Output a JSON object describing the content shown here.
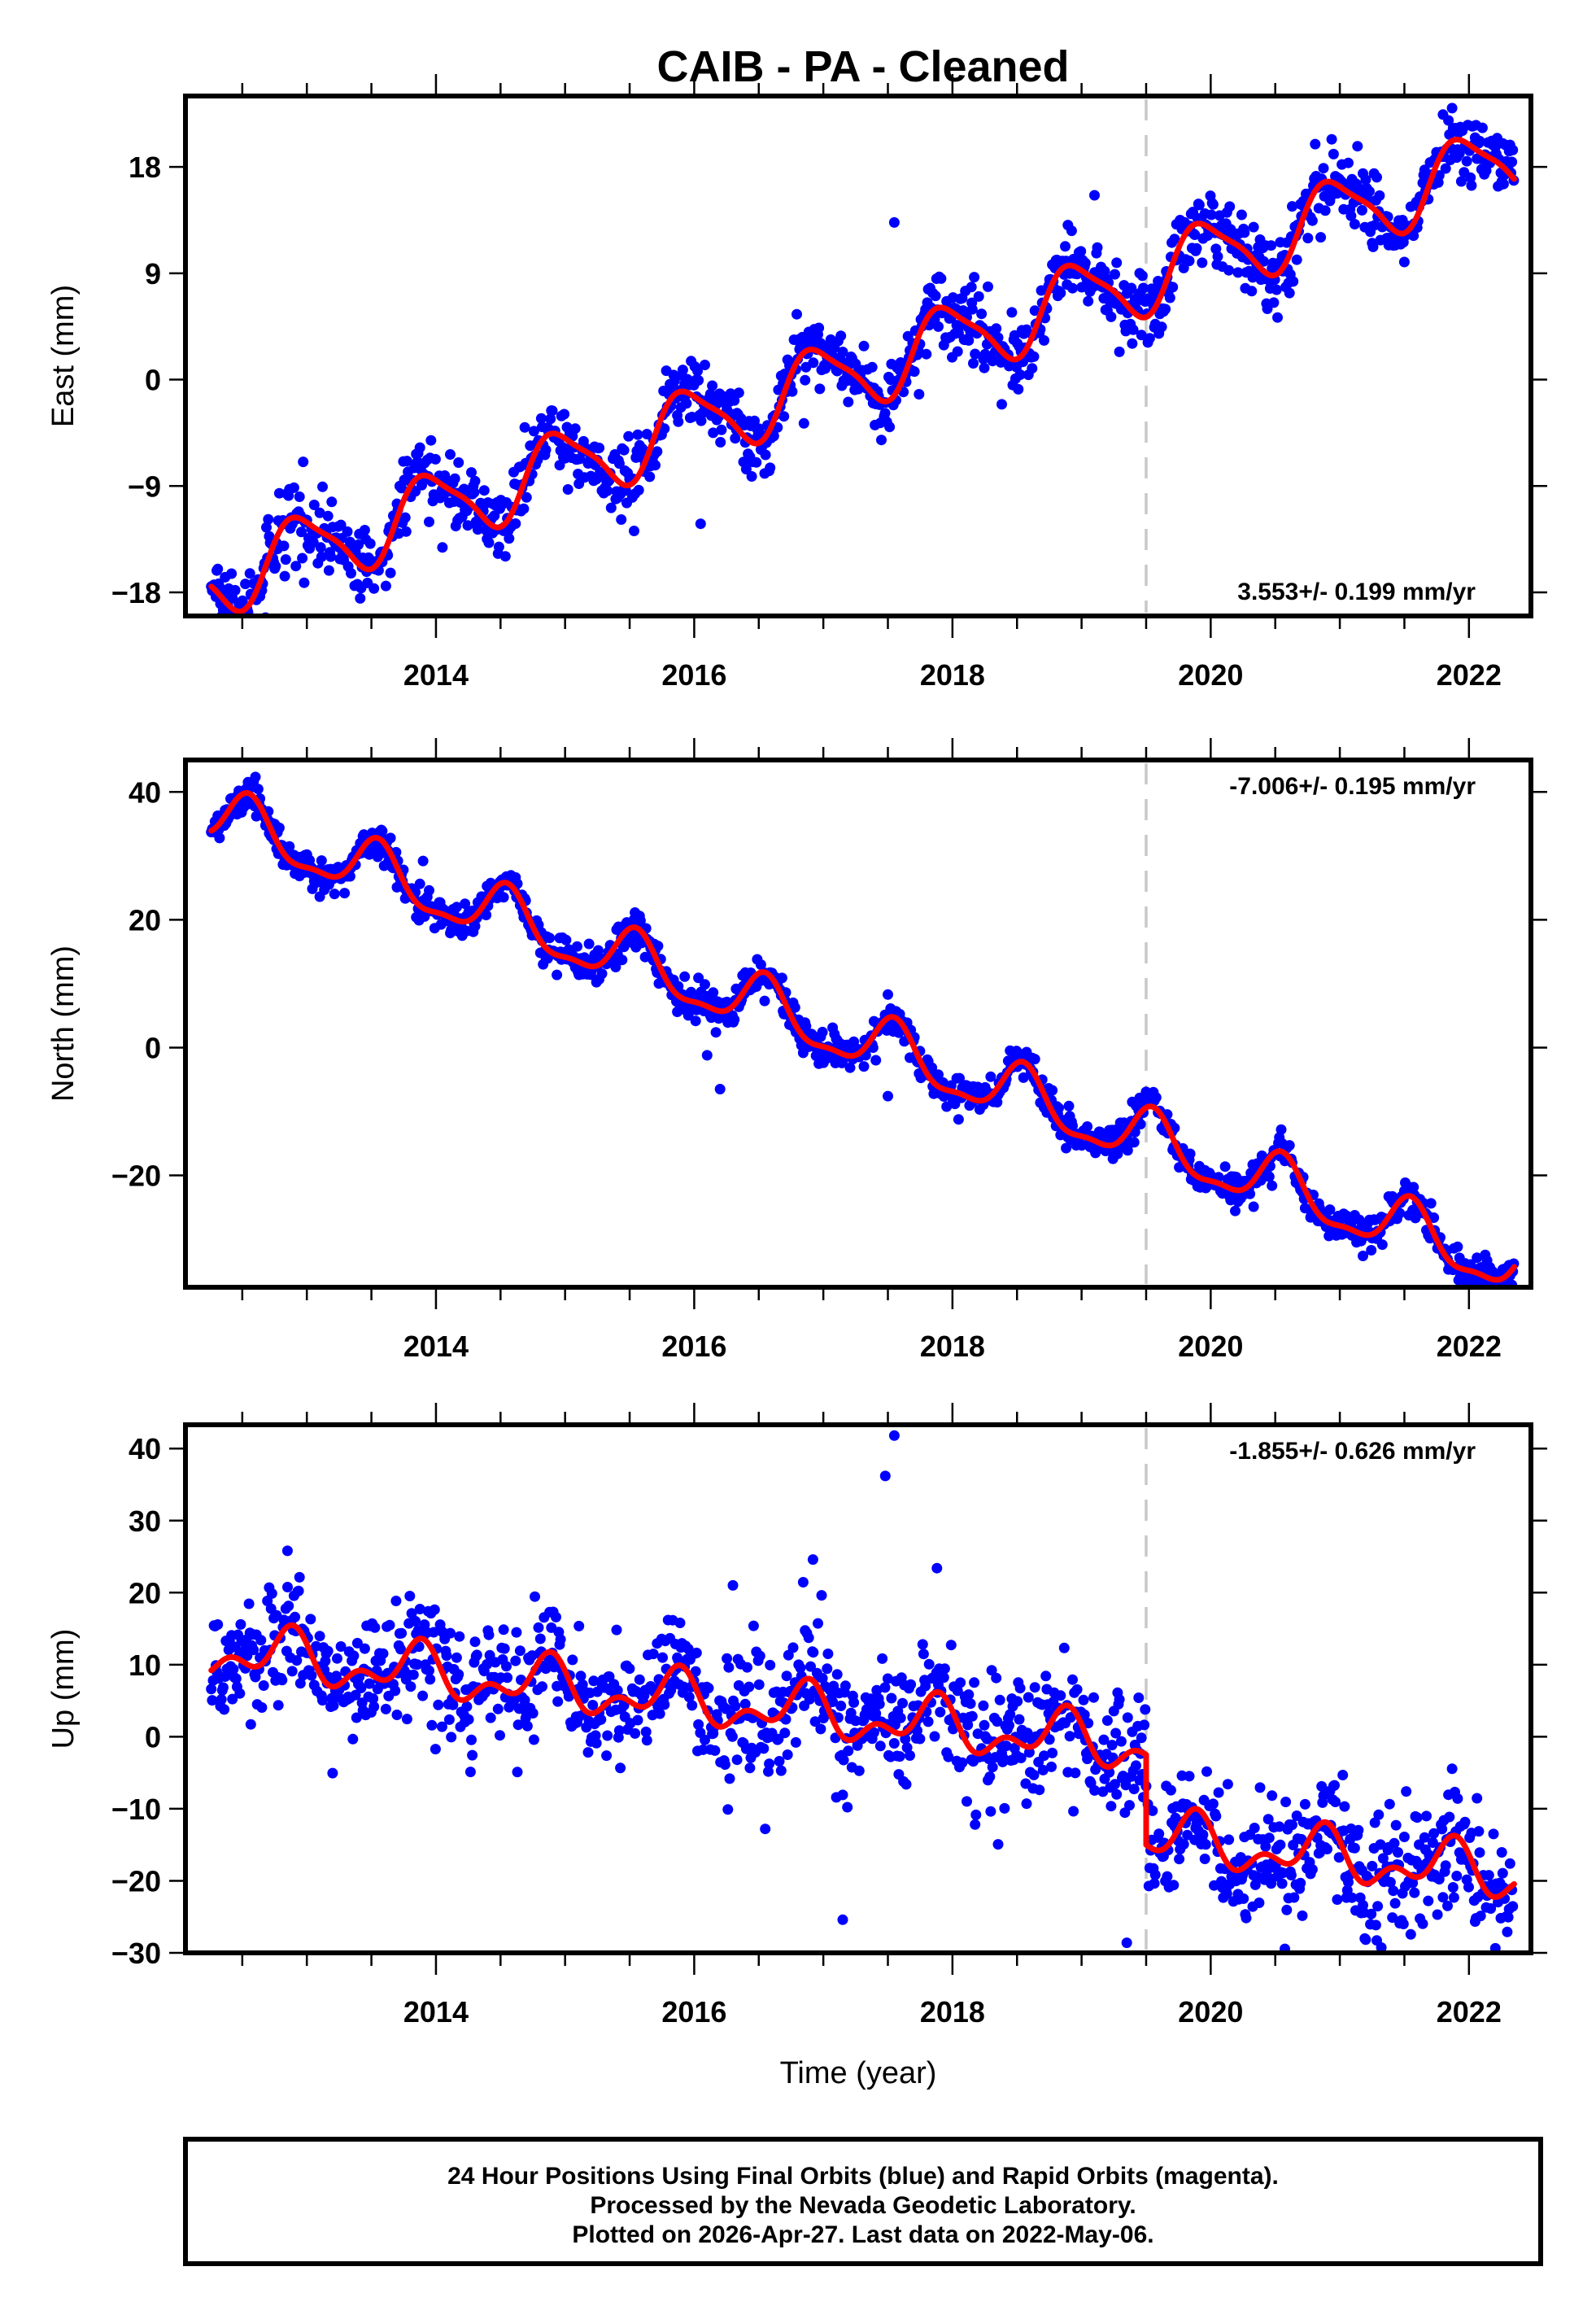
{
  "title": "CAIB  - PA - Cleaned",
  "footer": {
    "line1": "24 Hour Positions Using Final Orbits (blue) and Rapid Orbits (magenta).",
    "line2": "Processed by the Nevada Geodetic Laboratory.",
    "line3": "Plotted on 2026-Apr-27. Last data on 2022-May-06."
  },
  "colors": {
    "final_orbits": "#0000ff",
    "fit": "#ff0000",
    "equipment_change": "#c8c8c8",
    "frame": "#000000"
  },
  "chart_data": [
    {
      "type": "scatter",
      "panel": "east",
      "title": "CAIB  - PA - Cleaned",
      "ylabel": "East (mm)",
      "xlabel": "",
      "xlim": [
        2012.06,
        2022.48
      ],
      "ylim": [
        -20,
        24
      ],
      "xticks": [
        2014,
        2016,
        2018,
        2020,
        2022
      ],
      "xtick_labels": [
        "2014",
        "2016",
        "2018",
        "2020",
        "2022"
      ],
      "xminor_step": 0.5,
      "yticks": [
        -18,
        -9,
        0,
        9,
        18
      ],
      "ytick_labels": [
        "−18",
        "−9",
        "0",
        "9",
        "18"
      ],
      "rate_label": "3.553+/- 0.199 mm/yr",
      "rate_label_position": "bottom-right",
      "equipment_change_year": 2019.5,
      "data_range": [
        2012.26,
        2022.35
      ],
      "fit": {
        "velocity": 3.553,
        "ref_year": 2017.3,
        "offset": 0.9,
        "annual_amp": 3.0,
        "annual_peak": 0.95,
        "semiannual_amp": 0.7,
        "semiannual_peak": 0.3,
        "step_year": 2019.5,
        "step": 0.0
      },
      "noise_sd": 1.5,
      "outliers": [
        [
          2016.05,
          -12.2
        ],
        [
          2017.55,
          13.3
        ],
        [
          2018.1,
          7.5
        ],
        [
          2018.15,
          6.5
        ],
        [
          2019.1,
          15.6
        ],
        [
          2016.85,
          -3.7
        ],
        [
          2014.05,
          -14.2
        ]
      ]
    },
    {
      "type": "scatter",
      "panel": "north",
      "ylabel": "North (mm)",
      "xlabel": "",
      "xlim": [
        2012.06,
        2022.48
      ],
      "ylim": [
        -37.5,
        45
      ],
      "xticks": [
        2014,
        2016,
        2018,
        2020,
        2022
      ],
      "xtick_labels": [
        "2014",
        "2016",
        "2018",
        "2020",
        "2022"
      ],
      "xminor_step": 0.5,
      "yticks": [
        -20,
        0,
        20,
        40
      ],
      "ytick_labels": [
        "−20",
        "0",
        "20",
        "40"
      ],
      "rate_label": "-7.006+/- 0.195 mm/yr",
      "rate_label_position": "top-right",
      "equipment_change_year": 2019.5,
      "data_range": [
        2012.26,
        2022.35
      ],
      "fit": {
        "velocity": -7.006,
        "ref_year": 2017.3,
        "offset": 0.9,
        "annual_amp": 4.2,
        "annual_peak": 0.55,
        "semiannual_amp": 1.4,
        "semiannual_peak": 0.05,
        "step_year": 2019.5,
        "step": 0.0
      },
      "noise_sd": 1.4,
      "outliers": [
        [
          2016.2,
          -6.5
        ],
        [
          2017.5,
          8.3
        ],
        [
          2017.5,
          -7.6
        ],
        [
          2018.55,
          -4.7
        ],
        [
          2016.1,
          -1.2
        ],
        [
          2013.9,
          29.2
        ]
      ]
    },
    {
      "type": "scatter",
      "panel": "up",
      "ylabel": "Up (mm)",
      "xlabel": "Time (year)",
      "xlim": [
        2012.06,
        2022.48
      ],
      "ylim": [
        -30,
        43.3
      ],
      "xticks": [
        2014,
        2016,
        2018,
        2020,
        2022
      ],
      "xtick_labels": [
        "2014",
        "2016",
        "2018",
        "2020",
        "2022"
      ],
      "xminor_step": 0.5,
      "yticks": [
        -30,
        -20,
        -10,
        0,
        10,
        20,
        30,
        40
      ],
      "ytick_labels": [
        "−30",
        "−20",
        "−10",
        "0",
        "10",
        "20",
        "30",
        "40"
      ],
      "rate_label": "-1.855+/- 0.626 mm/yr",
      "rate_label_position": "top-right",
      "equipment_change_year": 2019.5,
      "data_range": [
        2012.26,
        2022.35
      ],
      "fit": {
        "velocity": -1.855,
        "ref_year": 2017.3,
        "offset": 2.6,
        "annual_amp": 2.8,
        "annual_peak": 0.85,
        "semiannual_amp": 2.0,
        "semiannual_peak": 0.4,
        "step_year": 2019.5,
        "step": -12.5
      },
      "noise_sd": 4.2,
      "outliers": [
        [
          2017.55,
          41.8
        ],
        [
          2017.48,
          36.2
        ],
        [
          2017.88,
          23.4
        ],
        [
          2016.92,
          24.6
        ],
        [
          2012.85,
          25.8
        ],
        [
          2017.15,
          -25.4
        ],
        [
          2019.35,
          -28.6
        ],
        [
          2016.3,
          21.0
        ],
        [
          2016.55,
          -12.8
        ]
      ]
    }
  ]
}
